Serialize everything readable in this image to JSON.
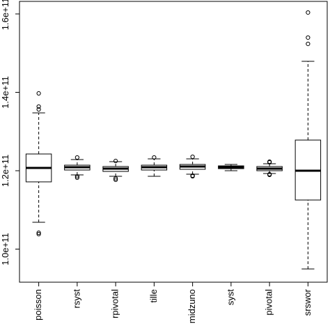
{
  "chart_data": {
    "type": "box",
    "categories": [
      "poisson",
      "rsyst",
      "rpivotal",
      "tille",
      "midzuno",
      "syst",
      "pivotal",
      "srswor"
    ],
    "stats": [
      [
        106840000000.0,
        117160000000.0,
        120710000000.0,
        124270000000.0,
        134760000000.0
      ],
      [
        118930000000.0,
        120180000000.0,
        120890000000.0,
        121420000000.0,
        122840000000.0
      ],
      [
        118580000000.0,
        119820000000.0,
        120530000000.0,
        121070000000.0,
        122310000000.0
      ],
      [
        118580000000.0,
        120180000000.0,
        120890000000.0,
        121420000000.0,
        123020000000.0
      ],
      [
        119110000000.0,
        120360000000.0,
        121070000000.0,
        121600000000.0,
        123020000000.0
      ],
      [
        120000000000.0,
        120530000000.0,
        120890000000.0,
        121240000000.0,
        121600000000.0
      ],
      [
        119290000000.0,
        120000000000.0,
        120530000000.0,
        121070000000.0,
        121780000000.0
      ],
      [
        94930000000.0,
        112530000000.0,
        120000000000.0,
        127820000000.0,
        147910000000.0
      ]
    ],
    "outliers": [
      [
        139730000000.0,
        136360000000.0,
        135640000000.0,
        104180000000.0,
        103820000000.0
      ],
      [
        123380000000.0,
        118580000000.0,
        118220000000.0
      ],
      [
        122490000000.0,
        118040000000.0,
        117690000000.0
      ],
      [
        123380000000.0
      ],
      [
        123560000000.0,
        118760000000.0,
        118580000000.0
      ],
      [],
      [
        122310000000.0,
        122130000000.0,
        119110000000.0,
        118930000000.0
      ],
      [
        160360000000.0,
        153960000000.0,
        152360000000.0
      ]
    ],
    "ylim": [
      91560000000.0,
      163200000000.0
    ],
    "yticks": [
      {
        "value": 100000000000.0,
        "label": "1.0e+11"
      },
      {
        "value": 120000000000.0,
        "label": "1.2e+11"
      },
      {
        "value": 140000000000.0,
        "label": "1.4e+11"
      },
      {
        "value": 160000000000.0,
        "label": "1.6e+11"
      }
    ]
  }
}
